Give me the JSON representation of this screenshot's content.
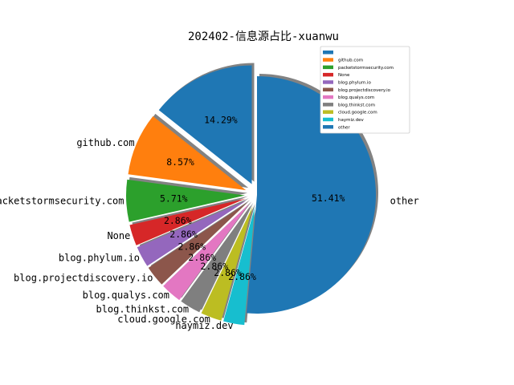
{
  "chart_data": {
    "type": "pie",
    "title": "202402-信息源占比-xuanwu",
    "slices": [
      {
        "label": "",
        "value": 14.29,
        "pct_label": "14.29%",
        "color": "#1f77b4",
        "explode": true,
        "show_label": false
      },
      {
        "label": "github.com",
        "value": 8.57,
        "pct_label": "8.57%",
        "color": "#ff7f0e",
        "explode": true,
        "show_label": true
      },
      {
        "label": "packetstormsecurity.com",
        "value": 5.71,
        "pct_label": "5.71%",
        "color": "#2ca02c",
        "explode": true,
        "show_label": true
      },
      {
        "label": "None",
        "value": 2.86,
        "pct_label": "2.86%",
        "color": "#d62728",
        "explode": true,
        "show_label": true
      },
      {
        "label": "blog.phylum.io",
        "value": 2.86,
        "pct_label": "2.86%",
        "color": "#9467bd",
        "explode": true,
        "show_label": true
      },
      {
        "label": "blog.projectdiscovery.io",
        "value": 2.86,
        "pct_label": "2.86%",
        "color": "#8c564b",
        "explode": true,
        "show_label": true
      },
      {
        "label": "blog.qualys.com",
        "value": 2.86,
        "pct_label": "2.86%",
        "color": "#e377c2",
        "explode": true,
        "show_label": true
      },
      {
        "label": "blog.thinkst.com",
        "value": 2.86,
        "pct_label": "2.86%",
        "color": "#7f7f7f",
        "explode": true,
        "show_label": true
      },
      {
        "label": "cloud.google.com",
        "value": 2.86,
        "pct_label": "2.86%",
        "color": "#bcbd22",
        "explode": true,
        "show_label": true
      },
      {
        "label": "haymiz.dev",
        "value": 2.86,
        "pct_label": "2.86%",
        "color": "#17becf",
        "explode": true,
        "show_label": true
      },
      {
        "label": "other",
        "value": 51.41,
        "pct_label": "51.41%",
        "color": "#1f77b4",
        "explode": false,
        "show_label": true
      }
    ],
    "legend": {
      "placement": "top-right",
      "entries": [
        "",
        "github.com",
        "packetstormsecurity.com",
        "None",
        "blog.phylum.io",
        "blog.projectdiscovery.io",
        "blog.qualys.com",
        "blog.thinkst.com",
        "cloud.google.com",
        "haymiz.dev",
        "other"
      ]
    },
    "start_angle_deg": 90,
    "shadow": true
  }
}
